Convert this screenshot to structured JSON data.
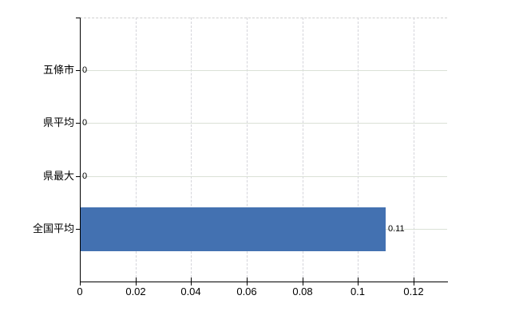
{
  "chart_data": {
    "type": "bar",
    "orientation": "horizontal",
    "title": "",
    "xlabel": "",
    "ylabel": "",
    "categories": [
      "五條市",
      "県平均",
      "県最大",
      "全国平均"
    ],
    "values": [
      0,
      0,
      0,
      0.11
    ],
    "value_labels": [
      "0",
      "0",
      "0",
      "0.11"
    ],
    "x_ticks": [
      0,
      0.02,
      0.04,
      0.06,
      0.08,
      0.1,
      0.12
    ],
    "x_tick_labels": [
      "0",
      "0.02",
      "0.04",
      "0.06",
      "0.08",
      "0.1",
      "0.12"
    ],
    "xlim": [
      0,
      0.132
    ],
    "grid": true,
    "legend": null,
    "colors": {
      "bar": "#4371b1",
      "axis": "#000000",
      "h_gridline": "#dae1d6",
      "v_gridline": "#d4d4da",
      "top_border": "#cfcfcf",
      "text": "#000000"
    }
  }
}
